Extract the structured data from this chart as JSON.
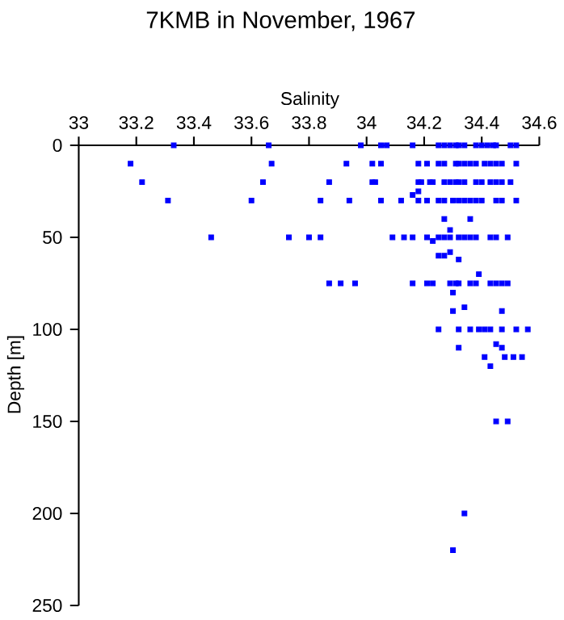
{
  "chart_data": {
    "type": "scatter",
    "title": "7KMB in November, 1967",
    "xlabel": "Salinity",
    "ylabel": "Depth [m]",
    "xlim": [
      33,
      34.6
    ],
    "xticks": [
      33,
      33.2,
      33.4,
      33.6,
      33.8,
      34,
      34.2,
      34.4,
      34.6
    ],
    "ylim": [
      250,
      0
    ],
    "yticks": [
      0,
      50,
      100,
      150,
      200,
      250
    ],
    "marker": "square",
    "grid": false,
    "series": [
      {
        "color": "#0000ff",
        "x": [
          33.33,
          33.66,
          33.98,
          34.05,
          34.07,
          34.16,
          34.25,
          34.27,
          34.29,
          34.31,
          34.32,
          34.34,
          34.38,
          34.4,
          34.42,
          34.44,
          34.45,
          34.5,
          34.52,
          33.18,
          33.67,
          33.93,
          34.02,
          34.05,
          34.18,
          34.21,
          34.25,
          34.27,
          34.31,
          34.32,
          34.34,
          34.36,
          34.38,
          34.41,
          34.43,
          34.45,
          34.47,
          34.52,
          33.22,
          33.64,
          33.87,
          34.02,
          34.03,
          34.18,
          34.19,
          34.22,
          34.23,
          34.27,
          34.29,
          34.31,
          34.32,
          34.34,
          34.38,
          34.4,
          34.43,
          34.45,
          34.47,
          34.5,
          34.18,
          34.16,
          33.31,
          33.6,
          33.84,
          33.94,
          34.05,
          34.12,
          34.18,
          34.21,
          34.25,
          34.27,
          34.3,
          34.32,
          34.34,
          34.36,
          34.38,
          34.4,
          34.45,
          34.47,
          34.52,
          34.27,
          34.36,
          34.29,
          33.46,
          33.73,
          33.8,
          33.84,
          34.09,
          34.13,
          34.16,
          34.21,
          34.25,
          34.27,
          34.29,
          34.32,
          34.34,
          34.36,
          34.38,
          34.43,
          34.45,
          34.49,
          34.23,
          34.29,
          34.25,
          34.27,
          34.32,
          34.39,
          33.87,
          33.91,
          33.96,
          34.16,
          34.21,
          34.23,
          34.29,
          34.31,
          34.32,
          34.36,
          34.38,
          34.43,
          34.45,
          34.47,
          34.49,
          34.3,
          34.34,
          34.3,
          34.47,
          34.25,
          34.32,
          34.36,
          34.39,
          34.41,
          34.43,
          34.47,
          34.52,
          34.56,
          34.45,
          34.32,
          34.47,
          34.41,
          34.48,
          34.51,
          34.54,
          34.43,
          34.45,
          34.49,
          34.34,
          34.3
        ],
        "values": [
          0,
          0,
          0,
          0,
          0,
          0,
          0,
          0,
          0,
          0,
          0,
          0,
          0,
          0,
          0,
          0,
          0,
          0,
          0,
          10,
          10,
          10,
          10,
          10,
          10,
          10,
          10,
          10,
          10,
          10,
          10,
          10,
          10,
          10,
          10,
          10,
          10,
          10,
          20,
          20,
          20,
          20,
          20,
          20,
          20,
          20,
          20,
          20,
          20,
          20,
          20,
          20,
          20,
          20,
          20,
          20,
          20,
          20,
          25,
          27,
          30,
          30,
          30,
          30,
          30,
          30,
          30,
          30,
          30,
          30,
          30,
          30,
          30,
          30,
          30,
          30,
          30,
          30,
          30,
          40,
          40,
          46,
          50,
          50,
          50,
          50,
          50,
          50,
          50,
          50,
          50,
          50,
          50,
          50,
          50,
          50,
          50,
          50,
          50,
          50,
          52,
          58,
          60,
          60,
          62,
          70,
          75,
          75,
          75,
          75,
          75,
          75,
          75,
          75,
          75,
          75,
          75,
          75,
          75,
          75,
          75,
          80,
          88,
          90,
          90,
          100,
          100,
          100,
          100,
          100,
          100,
          100,
          100,
          100,
          108,
          110,
          110,
          115,
          115,
          115,
          115,
          120,
          150,
          150,
          200,
          220
        ]
      }
    ]
  }
}
